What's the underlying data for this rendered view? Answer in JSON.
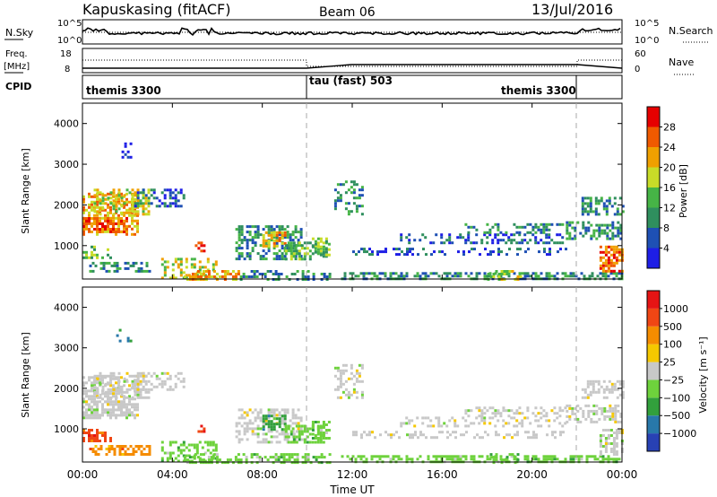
{
  "header": {
    "station": "Kapuskasing (fitACF)",
    "beam": "Beam 06",
    "date": "13/Jul/2016"
  },
  "noise_panel": {
    "left_label": "N.Sky",
    "left_ticks": [
      "10^5",
      "10^0"
    ],
    "right_label": "N.Search",
    "right_ticks": [
      "10^5",
      "10^0"
    ]
  },
  "freq_panel": {
    "left_label": "Freq.",
    "left_unit": "[MHz]",
    "left_ticks": [
      "18",
      "8"
    ],
    "right_label": "Nave",
    "right_ticks": [
      "60",
      "0"
    ]
  },
  "cpid_panel": {
    "label": "CPID",
    "segments": [
      "themis 3300",
      "tau (fast) 503",
      "themis 3300"
    ]
  },
  "chart_data": [
    {
      "type": "heatmap",
      "title": "",
      "ylabel": "Slant Range [km]",
      "xlabel": "",
      "x_ticks": [
        "00:00",
        "04:00",
        "08:00",
        "12:00",
        "16:00",
        "20:00",
        "00:00"
      ],
      "y_ticks": [
        "1000",
        "2000",
        "3000",
        "4000"
      ],
      "ylim": [
        180,
        4500
      ],
      "colorbar_label": "Power [dB]",
      "colorbar_ticks": [
        "4",
        "8",
        "12",
        "16",
        "20",
        "24",
        "28"
      ],
      "colors": [
        "#1e1ee6",
        "#1e50b4",
        "#2f8f5e",
        "#46b446",
        "#c8dc28",
        "#f0a000",
        "#f05a00",
        "#e60000"
      ]
    },
    {
      "type": "heatmap",
      "title": "",
      "ylabel": "Slant Range [km]",
      "xlabel": "Time UT",
      "x_ticks": [
        "00:00",
        "04:00",
        "08:00",
        "12:00",
        "16:00",
        "20:00",
        "00:00"
      ],
      "y_ticks": [
        "1000",
        "2000",
        "3000",
        "4000"
      ],
      "ylim": [
        180,
        4500
      ],
      "colorbar_label": "Velocity [m s⁻¹]",
      "colorbar_ticks": [
        "1000",
        "500",
        "100",
        "25",
        "−25",
        "−100",
        "−500",
        "−1000"
      ],
      "colors": [
        "#2841b4",
        "#2878aa",
        "#32a03c",
        "#6ed23c",
        "#c8c8c8",
        "#f5c800",
        "#f58c00",
        "#f04614",
        "#e61414"
      ]
    }
  ]
}
